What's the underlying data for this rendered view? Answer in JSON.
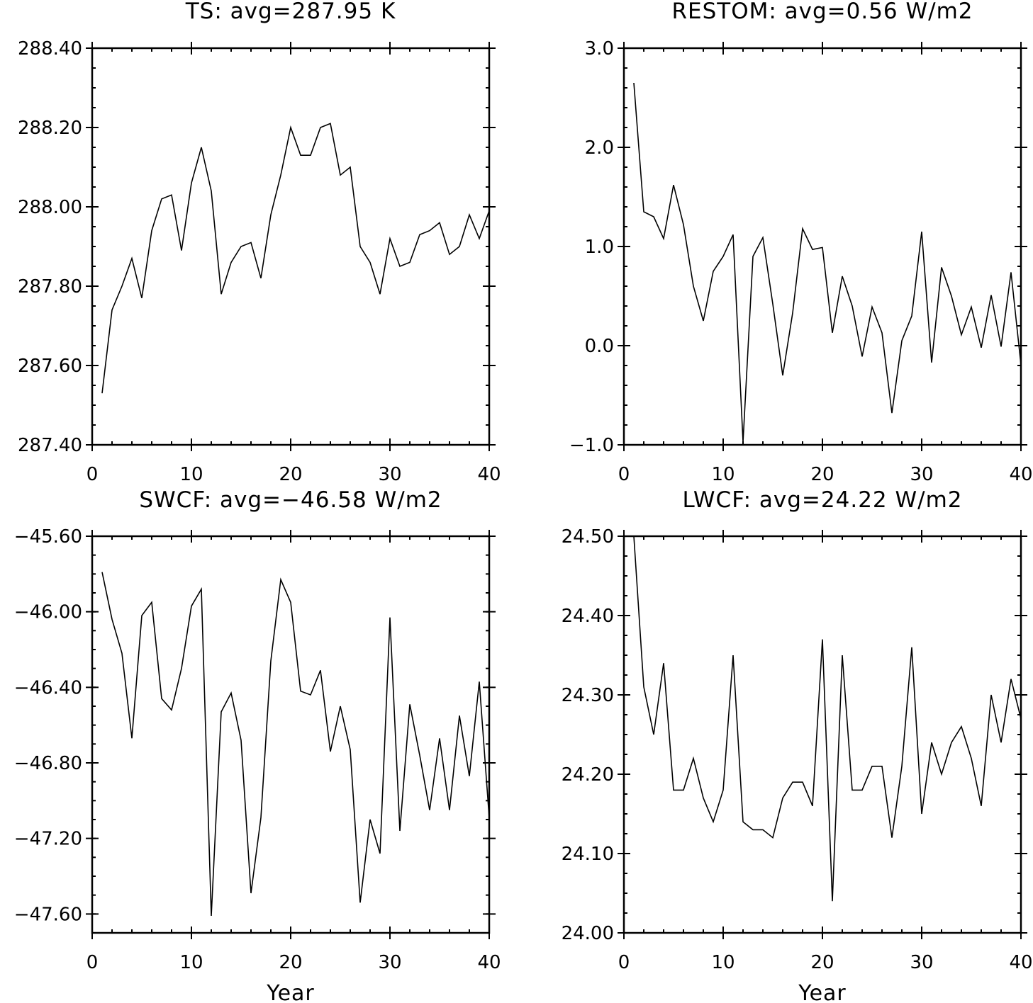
{
  "chart_data": [
    {
      "id": "ts",
      "type": "line",
      "title": "TS: avg=287.95 K",
      "xlabel": "",
      "ylabel": "",
      "xlim": [
        0,
        40
      ],
      "ylim": [
        287.4,
        288.4
      ],
      "xticks": [
        0,
        10,
        20,
        30,
        40
      ],
      "xtick_labels": [
        "0",
        "10",
        "20",
        "30",
        "40"
      ],
      "yticks": [
        287.4,
        287.6,
        287.8,
        288.0,
        288.2,
        288.4
      ],
      "ytick_labels": [
        "287.40",
        "287.60",
        "287.80",
        "288.00",
        "288.20",
        "288.40"
      ],
      "yminor_step": 0.05,
      "xminor_step": 2,
      "grid": false,
      "series": [
        {
          "x": [
            1,
            2,
            3,
            4,
            5,
            6,
            7,
            8,
            9,
            10,
            11,
            12,
            13,
            14,
            15,
            16,
            17,
            18,
            19,
            20,
            21,
            22,
            23,
            24,
            25,
            26,
            27,
            28,
            29,
            30,
            31,
            32,
            33,
            34,
            35,
            36,
            37,
            38,
            39,
            40
          ],
          "values": [
            287.53,
            287.74,
            287.8,
            287.87,
            287.77,
            287.94,
            288.02,
            288.03,
            287.89,
            288.06,
            288.15,
            288.04,
            287.78,
            287.86,
            287.9,
            287.91,
            287.82,
            287.98,
            288.08,
            288.2,
            288.13,
            288.13,
            288.2,
            288.21,
            288.08,
            288.1,
            287.9,
            287.86,
            287.78,
            287.92,
            287.85,
            287.86,
            287.93,
            287.94,
            287.96,
            287.88,
            287.9,
            287.98,
            287.92,
            287.99
          ]
        }
      ]
    },
    {
      "id": "restom",
      "type": "line",
      "title": "RESTOM: avg=0.56 W/m2",
      "xlabel": "",
      "ylabel": "",
      "xlim": [
        0,
        40
      ],
      "ylim": [
        -1.0,
        3.0
      ],
      "xticks": [
        0,
        10,
        20,
        30,
        40
      ],
      "xtick_labels": [
        "0",
        "10",
        "20",
        "30",
        "40"
      ],
      "yticks": [
        -1.0,
        0.0,
        1.0,
        2.0,
        3.0
      ],
      "ytick_labels": [
        "−1.0",
        "0.0",
        "1.0",
        "2.0",
        "3.0"
      ],
      "yminor_step": 0.2,
      "xminor_step": 2,
      "grid": false,
      "series": [
        {
          "x": [
            1,
            2,
            3,
            4,
            5,
            6,
            7,
            8,
            9,
            10,
            11,
            12,
            13,
            14,
            15,
            16,
            17,
            18,
            19,
            20,
            21,
            22,
            23,
            24,
            25,
            26,
            27,
            28,
            29,
            30,
            31,
            32,
            33,
            34,
            35,
            36,
            37,
            38,
            39,
            40
          ],
          "values": [
            2.65,
            1.35,
            1.3,
            1.08,
            1.62,
            1.22,
            0.6,
            0.25,
            0.75,
            0.9,
            1.12,
            -0.97,
            0.9,
            1.09,
            0.42,
            -0.3,
            0.33,
            1.18,
            0.97,
            0.99,
            0.13,
            0.7,
            0.4,
            -0.11,
            0.39,
            0.13,
            -0.68,
            0.05,
            0.3,
            1.15,
            -0.17,
            0.79,
            0.5,
            0.11,
            0.39,
            -0.02,
            0.51,
            -0.01,
            0.74,
            -0.19
          ]
        }
      ]
    },
    {
      "id": "swcf",
      "type": "line",
      "title": "SWCF: avg=−46.58 W/m2",
      "xlabel": "Year",
      "ylabel": "",
      "xlim": [
        0,
        40
      ],
      "ylim": [
        -47.7,
        -45.6
      ],
      "xticks": [
        0,
        10,
        20,
        30,
        40
      ],
      "xtick_labels": [
        "0",
        "10",
        "20",
        "30",
        "40"
      ],
      "yticks": [
        -47.6,
        -47.2,
        -46.8,
        -46.4,
        -46.0,
        -45.6
      ],
      "ytick_labels": [
        "−47.60",
        "−47.20",
        "−46.80",
        "−46.40",
        "−46.00",
        "−45.60"
      ],
      "yminor_step": 0.1,
      "xminor_step": 2,
      "grid": false,
      "series": [
        {
          "x": [
            1,
            2,
            3,
            4,
            5,
            6,
            7,
            8,
            9,
            10,
            11,
            12,
            13,
            14,
            15,
            16,
            17,
            18,
            19,
            20,
            21,
            22,
            23,
            24,
            25,
            26,
            27,
            28,
            29,
            30,
            31,
            32,
            33,
            34,
            35,
            36,
            37,
            38,
            39,
            40
          ],
          "values": [
            -45.79,
            -46.04,
            -46.22,
            -46.67,
            -46.02,
            -45.95,
            -46.46,
            -46.52,
            -46.3,
            -45.97,
            -45.88,
            -47.61,
            -46.53,
            -46.43,
            -46.68,
            -47.49,
            -47.09,
            -46.26,
            -45.83,
            -45.95,
            -46.42,
            -46.44,
            -46.31,
            -46.74,
            -46.5,
            -46.73,
            -47.54,
            -47.1,
            -47.28,
            -46.03,
            -47.16,
            -46.49,
            -46.76,
            -47.05,
            -46.67,
            -47.05,
            -46.55,
            -46.87,
            -46.37,
            -47.09
          ]
        }
      ]
    },
    {
      "id": "lwcf",
      "type": "line",
      "title": "LWCF: avg=24.22 W/m2",
      "xlabel": "Year",
      "ylabel": "",
      "xlim": [
        0,
        40
      ],
      "ylim": [
        24.0,
        24.5
      ],
      "xticks": [
        0,
        10,
        20,
        30,
        40
      ],
      "xtick_labels": [
        "0",
        "10",
        "20",
        "30",
        "40"
      ],
      "yticks": [
        24.0,
        24.1,
        24.2,
        24.3,
        24.4,
        24.5
      ],
      "ytick_labels": [
        "24.00",
        "24.10",
        "24.20",
        "24.30",
        "24.40",
        "24.50"
      ],
      "yminor_step": 0.025,
      "xminor_step": 2,
      "grid": false,
      "series": [
        {
          "x": [
            1,
            2,
            3,
            4,
            5,
            6,
            7,
            8,
            9,
            10,
            11,
            12,
            13,
            14,
            15,
            16,
            17,
            18,
            19,
            20,
            21,
            22,
            23,
            24,
            25,
            26,
            27,
            28,
            29,
            30,
            31,
            32,
            33,
            34,
            35,
            36,
            37,
            38,
            39,
            40
          ],
          "values": [
            24.5,
            24.31,
            24.25,
            24.34,
            24.18,
            24.18,
            24.22,
            24.17,
            24.14,
            24.18,
            24.35,
            24.14,
            24.13,
            24.13,
            24.12,
            24.17,
            24.19,
            24.19,
            24.16,
            24.37,
            24.04,
            24.35,
            24.18,
            24.18,
            24.21,
            24.21,
            24.12,
            24.21,
            24.36,
            24.15,
            24.24,
            24.2,
            24.24,
            24.26,
            24.22,
            24.16,
            24.3,
            24.24,
            24.32,
            24.27
          ]
        }
      ]
    }
  ]
}
